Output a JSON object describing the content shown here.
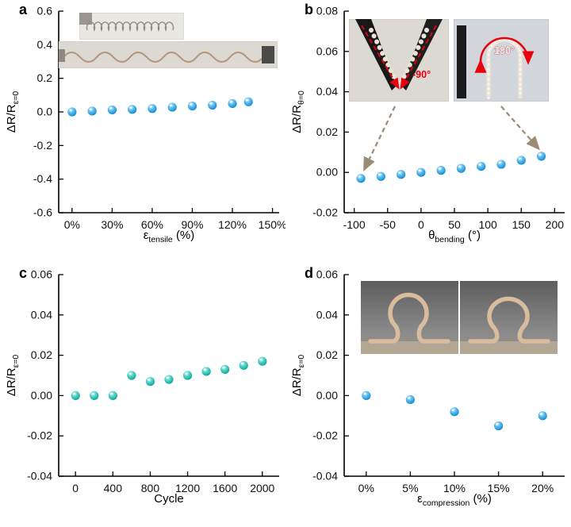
{
  "figure_title": "",
  "colors": {
    "blue": {
      "hi": "#eaf7ff",
      "light": "#66c0ef",
      "main": "#1b96dd",
      "dark": "#0b5f93"
    },
    "teal": {
      "hi": "#e6fbf8",
      "light": "#5fd6ca",
      "main": "#17b0a4",
      "dark": "#077a72"
    },
    "annotation_red": "#e8000d",
    "arrow_tan": "#9b8a74",
    "axis": "#000000",
    "background": "#ffffff"
  },
  "insets": {
    "b_left": {
      "angle_label": "-90°"
    },
    "b_right": {
      "angle_label": "180°"
    }
  },
  "chart_data": [
    {
      "type": "scatter",
      "panel": "a",
      "ylabel_pre": "ΔR/R",
      "ylabel_sub": "ε=0",
      "xlabel_pre": "ε",
      "xlabel_sub": "tensile",
      "xlabel_post": " (%)",
      "xlim": [
        -10,
        155
      ],
      "ylim": [
        -0.6,
        0.6
      ],
      "xtick_vals": [
        0,
        30,
        60,
        90,
        120,
        150
      ],
      "xtick_labels": [
        "0%",
        "30%",
        "60%",
        "90%",
        "120%",
        "150%"
      ],
      "ytick_vals": [
        -0.6,
        -0.4,
        -0.2,
        0.0,
        0.2,
        0.4,
        0.6
      ],
      "ytick_labels": [
        "-0.6",
        "-0.4",
        "-0.2",
        "0.0",
        "0.2",
        "0.4",
        "0.6"
      ],
      "color": "blue",
      "x": [
        0,
        15,
        30,
        45,
        60,
        75,
        90,
        105,
        120,
        132
      ],
      "y": [
        0.0,
        0.005,
        0.012,
        0.015,
        0.02,
        0.028,
        0.035,
        0.04,
        0.05,
        0.06
      ]
    },
    {
      "type": "scatter",
      "panel": "b",
      "ylabel_pre": "ΔR/R",
      "ylabel_sub": "θ=0",
      "xlabel_pre": "θ",
      "xlabel_sub": "bending",
      "xlabel_post": " (°)",
      "xlim": [
        -115,
        215
      ],
      "ylim": [
        -0.02,
        0.08
      ],
      "xtick_vals": [
        -100,
        -50,
        0,
        50,
        100,
        150,
        200
      ],
      "xtick_labels": [
        "-100",
        "-50",
        "0",
        "50",
        "100",
        "150",
        "200"
      ],
      "ytick_vals": [
        -0.02,
        0.0,
        0.02,
        0.04,
        0.06,
        0.08
      ],
      "ytick_labels": [
        "-0.02",
        "0.00",
        "0.02",
        "0.04",
        "0.06",
        "0.08"
      ],
      "color": "blue",
      "x": [
        -90,
        -60,
        -30,
        0,
        30,
        60,
        90,
        120,
        150,
        180
      ],
      "y": [
        -0.003,
        -0.002,
        -0.001,
        0.0,
        0.001,
        0.002,
        0.003,
        0.004,
        0.006,
        0.008
      ]
    },
    {
      "type": "scatter",
      "panel": "c",
      "ylabel_pre": "ΔR/R",
      "ylabel_sub": "ε=0",
      "xlabel_pre": "Cycle",
      "xlabel_sub": "",
      "xlabel_post": "",
      "xlim": [
        -180,
        2180
      ],
      "ylim": [
        -0.04,
        0.06
      ],
      "xtick_vals": [
        0,
        400,
        800,
        1200,
        1600,
        2000
      ],
      "xtick_labels": [
        "0",
        "400",
        "800",
        "1200",
        "1600",
        "2000"
      ],
      "ytick_vals": [
        -0.04,
        -0.02,
        0.0,
        0.02,
        0.04,
        0.06
      ],
      "ytick_labels": [
        "-0.04",
        "-0.02",
        "0.00",
        "0.02",
        "0.04",
        "0.06"
      ],
      "color": "teal",
      "x": [
        0,
        200,
        400,
        600,
        800,
        1000,
        1200,
        1400,
        1600,
        1800,
        2000
      ],
      "y": [
        0.0,
        0.0,
        0.0,
        0.01,
        0.007,
        0.008,
        0.01,
        0.012,
        0.013,
        0.015,
        0.017
      ]
    },
    {
      "type": "scatter",
      "panel": "d",
      "ylabel_pre": "ΔR/R",
      "ylabel_sub": "ε=0",
      "xlabel_pre": "ε",
      "xlabel_sub": "compression",
      "xlabel_post": " (%)",
      "xlim": [
        -2.5,
        22.5
      ],
      "ylim": [
        -0.04,
        0.06
      ],
      "xtick_vals": [
        0,
        5,
        10,
        15,
        20
      ],
      "xtick_labels": [
        "0%",
        "5%",
        "10%",
        "15%",
        "20%"
      ],
      "ytick_vals": [
        -0.04,
        -0.02,
        0.0,
        0.02,
        0.04,
        0.06
      ],
      "ytick_labels": [
        "-0.04",
        "-0.02",
        "0.00",
        "0.02",
        "0.04",
        "0.06"
      ],
      "color": "blue",
      "x": [
        0,
        5,
        10,
        15,
        20
      ],
      "y": [
        0.0,
        -0.002,
        -0.008,
        -0.015,
        -0.01
      ]
    }
  ]
}
